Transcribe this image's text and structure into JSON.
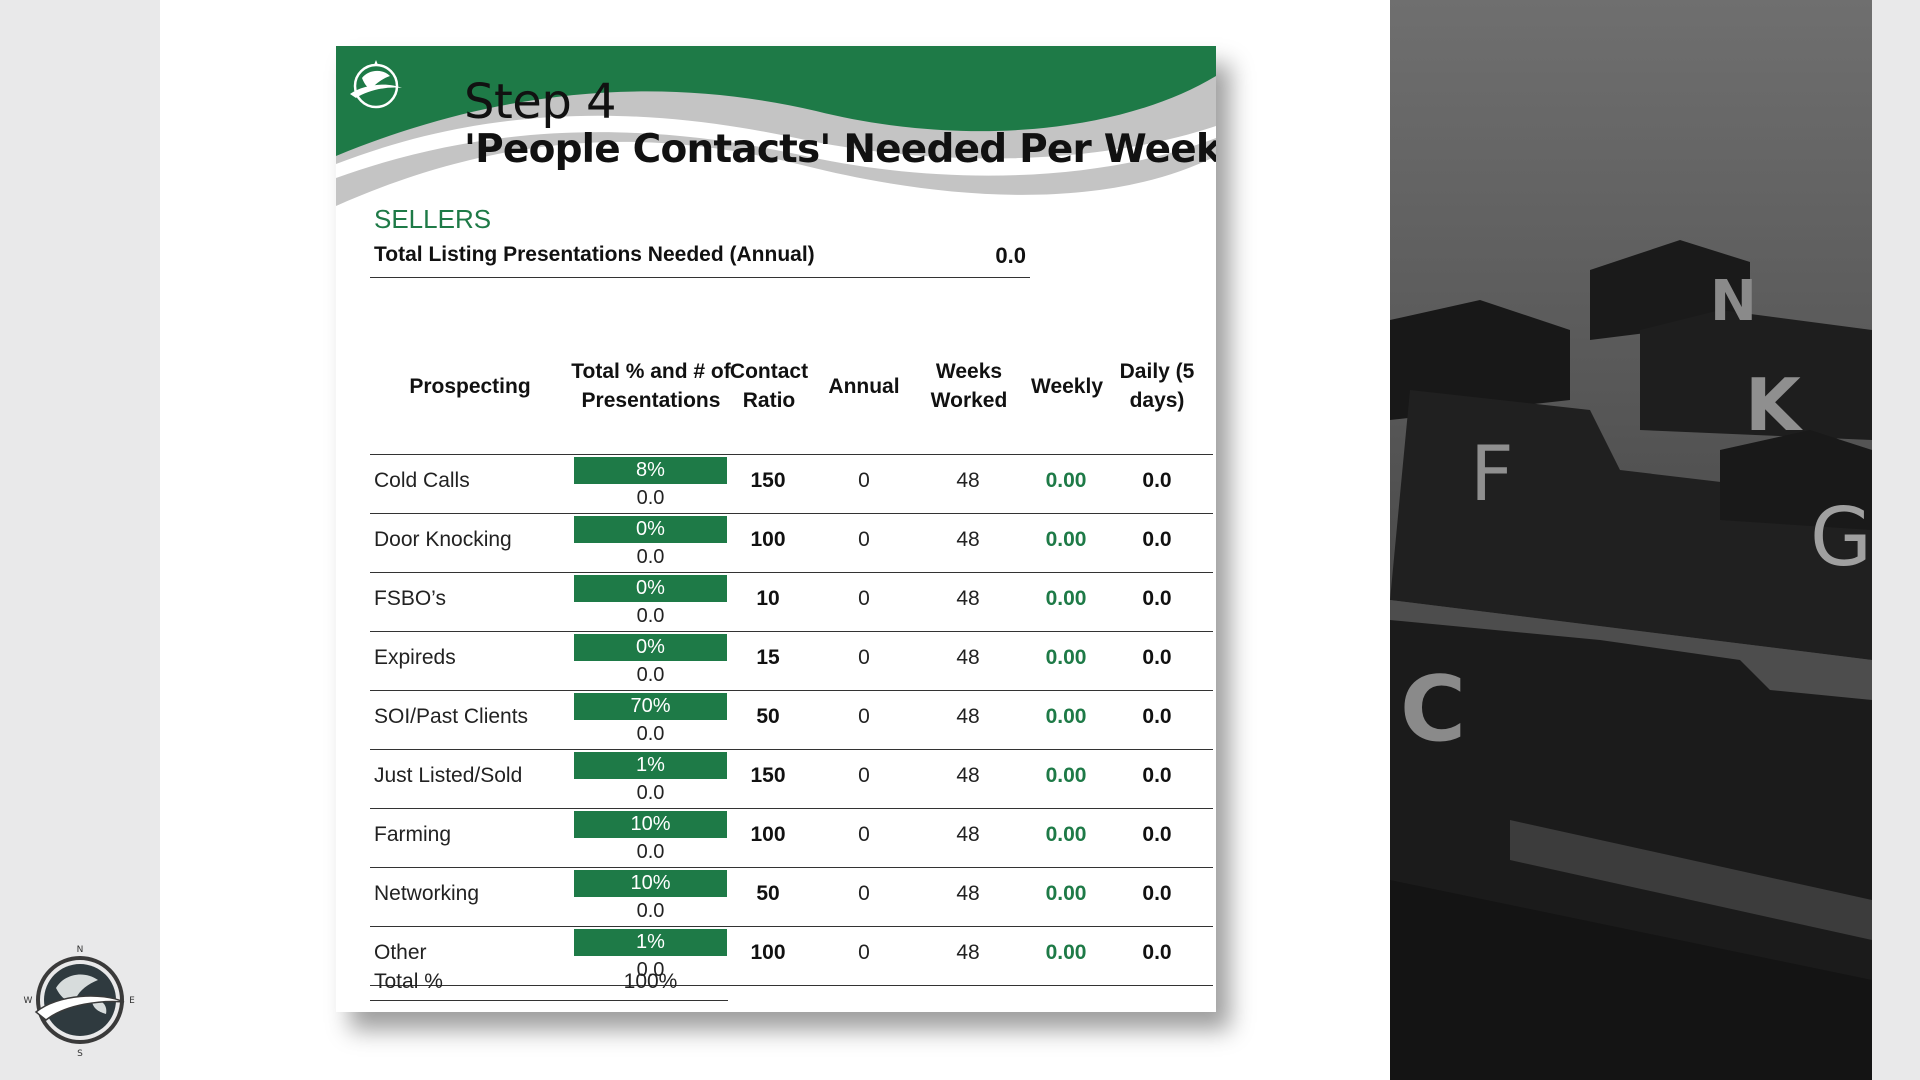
{
  "header": {
    "step": "Step 4",
    "title": "'People Contacts' Needed Per Week"
  },
  "sellers": {
    "section_label": "SELLERS",
    "total_label": "Total Listing Presentations Needed (Annual)",
    "total_value": "0.0"
  },
  "table": {
    "columns": {
      "prospecting": "Prospecting",
      "total": "Total % and # of Presentations",
      "ratio": "Contact Ratio",
      "annual": "Annual",
      "weeks": "Weeks Worked",
      "weekly": "Weekly",
      "daily": "Daily (5 days)"
    },
    "rows": [
      {
        "name": "Cold Calls",
        "pct": "8%",
        "num": "0.0",
        "ratio": "150",
        "annual": "0",
        "weeks": "48",
        "weekly": "0.00",
        "daily": "0.0"
      },
      {
        "name": "Door Knocking",
        "pct": "0%",
        "num": "0.0",
        "ratio": "100",
        "annual": "0",
        "weeks": "48",
        "weekly": "0.00",
        "daily": "0.0"
      },
      {
        "name": "FSBO’s",
        "pct": "0%",
        "num": "0.0",
        "ratio": "10",
        "annual": "0",
        "weeks": "48",
        "weekly": "0.00",
        "daily": "0.0"
      },
      {
        "name": "Expireds",
        "pct": "0%",
        "num": "0.0",
        "ratio": "15",
        "annual": "0",
        "weeks": "48",
        "weekly": "0.00",
        "daily": "0.0"
      },
      {
        "name": "SOI/Past Clients",
        "pct": "70%",
        "num": "0.0",
        "ratio": "50",
        "annual": "0",
        "weeks": "48",
        "weekly": "0.00",
        "daily": "0.0"
      },
      {
        "name": "Just Listed/Sold",
        "pct": "1%",
        "num": "0.0",
        "ratio": "150",
        "annual": "0",
        "weeks": "48",
        "weekly": "0.00",
        "daily": "0.0"
      },
      {
        "name": "Farming",
        "pct": "10%",
        "num": "0.0",
        "ratio": "100",
        "annual": "0",
        "weeks": "48",
        "weekly": "0.00",
        "daily": "0.0"
      },
      {
        "name": "Networking",
        "pct": "10%",
        "num": "0.0",
        "ratio": "50",
        "annual": "0",
        "weeks": "48",
        "weekly": "0.00",
        "daily": "0.0"
      },
      {
        "name": "Other",
        "pct": "1%",
        "num": "0.0",
        "ratio": "100",
        "annual": "0",
        "weeks": "48",
        "weekly": "0.00",
        "daily": "0.0"
      }
    ],
    "total_label": "Total %",
    "total_value": "100%"
  },
  "photo": {
    "tab_letters": [
      "N",
      "K",
      "F",
      "G",
      "C"
    ]
  },
  "compass": {
    "north": "N",
    "south": "S",
    "east": "E",
    "west": "W"
  },
  "colors": {
    "brand_green": "#1e7a47",
    "wave_gray": "#c4c4c4"
  },
  "icons": {
    "logo": "globe-swoosh-icon",
    "corner_logo": "compass-globe-icon"
  }
}
